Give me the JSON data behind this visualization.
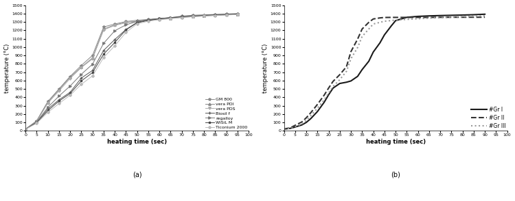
{
  "chart_a": {
    "xlabel": "heating time (sec)",
    "ylabel": "temperature (°C)",
    "xlim": [
      0,
      100
    ],
    "ylim": [
      0,
      1500
    ],
    "xticks": [
      0,
      5,
      10,
      15,
      20,
      25,
      30,
      35,
      40,
      45,
      50,
      55,
      60,
      65,
      70,
      75,
      80,
      85,
      90,
      95,
      100
    ],
    "yticks": [
      0,
      100,
      200,
      300,
      400,
      500,
      600,
      700,
      800,
      900,
      1000,
      1100,
      1200,
      1300,
      1400,
      1500
    ],
    "label": "(a)",
    "series": [
      {
        "name": "GM 800",
        "color": "#888888",
        "linestyle": "-",
        "marker": "*",
        "markersize": 3,
        "x": [
          0,
          5,
          10,
          15,
          20,
          25,
          30,
          35,
          40,
          45,
          50,
          55,
          60,
          65,
          70,
          75,
          80,
          85,
          90,
          95
        ],
        "y": [
          20,
          120,
          350,
          500,
          650,
          780,
          900,
          1240,
          1275,
          1305,
          1320,
          1330,
          1340,
          1350,
          1370,
          1380,
          1385,
          1390,
          1395,
          1400
        ]
      },
      {
        "name": "vera PDI",
        "color": "#888888",
        "linestyle": "-",
        "marker": "^",
        "markersize": 2.5,
        "x": [
          0,
          5,
          10,
          15,
          20,
          25,
          30,
          35,
          40,
          45,
          50,
          55,
          60,
          65,
          70,
          75,
          80,
          85,
          90,
          95
        ],
        "y": [
          20,
          115,
          340,
          490,
          640,
          760,
          870,
          1215,
          1265,
          1295,
          1308,
          1322,
          1333,
          1343,
          1358,
          1368,
          1376,
          1382,
          1388,
          1393
        ]
      },
      {
        "name": "vera PDS",
        "color": "#aaaaaa",
        "linestyle": "-",
        "marker": "v",
        "markersize": 2.5,
        "x": [
          0,
          5,
          10,
          15,
          20,
          25,
          30,
          35,
          40,
          45,
          50,
          55,
          60,
          65,
          70,
          75,
          80,
          85,
          90,
          95
        ],
        "y": [
          20,
          110,
          330,
          475,
          625,
          755,
          858,
          1205,
          1258,
          1290,
          1303,
          1317,
          1327,
          1338,
          1353,
          1363,
          1370,
          1377,
          1384,
          1390
        ]
      },
      {
        "name": "Biosil f",
        "color": "#555555",
        "linestyle": "-",
        "marker": "+",
        "markersize": 3.5,
        "x": [
          0,
          5,
          10,
          15,
          20,
          25,
          30,
          35,
          40,
          45,
          50,
          55,
          60,
          65,
          70,
          75,
          80,
          85,
          90,
          95
        ],
        "y": [
          20,
          100,
          260,
          370,
          460,
          630,
          720,
          960,
          1090,
          1210,
          1295,
          1325,
          1340,
          1352,
          1362,
          1372,
          1379,
          1386,
          1391,
          1396
        ]
      },
      {
        "name": "regalloy",
        "color": "#777777",
        "linestyle": "-",
        "marker": ">",
        "markersize": 2.5,
        "x": [
          0,
          5,
          10,
          15,
          20,
          25,
          30,
          35,
          40,
          45,
          50,
          55,
          60,
          65,
          70,
          75,
          80,
          85,
          90,
          95
        ],
        "y": [
          20,
          105,
          280,
          415,
          535,
          675,
          795,
          1045,
          1195,
          1265,
          1306,
          1327,
          1338,
          1348,
          1360,
          1370,
          1377,
          1383,
          1388,
          1393
        ]
      },
      {
        "name": "WiSiL M",
        "color": "#444444",
        "linestyle": "-",
        "marker": "s",
        "markersize": 2,
        "x": [
          0,
          5,
          10,
          15,
          20,
          25,
          30,
          35,
          40,
          45,
          50,
          55,
          60,
          65,
          70,
          75,
          80,
          85,
          90,
          95
        ],
        "y": [
          20,
          95,
          240,
          355,
          445,
          595,
          695,
          915,
          1055,
          1205,
          1290,
          1317,
          1337,
          1350,
          1358,
          1368,
          1375,
          1381,
          1386,
          1391
        ]
      },
      {
        "name": "Ticonium 2000",
        "color": "#bbbbbb",
        "linestyle": "-",
        "marker": "D",
        "markersize": 2,
        "x": [
          0,
          5,
          10,
          15,
          20,
          25,
          30,
          35,
          40,
          45,
          50,
          55,
          60,
          65,
          70,
          75,
          80,
          85,
          90,
          95
        ],
        "y": [
          20,
          90,
          220,
          325,
          425,
          555,
          655,
          875,
          1015,
          1175,
          1278,
          1308,
          1328,
          1342,
          1353,
          1363,
          1371,
          1378,
          1383,
          1388
        ]
      }
    ]
  },
  "chart_b": {
    "xlabel": "heating time (sec)",
    "ylabel": "temperature (°C)",
    "xlim": [
      0,
      100
    ],
    "ylim": [
      0,
      1500
    ],
    "xticks": [
      0,
      5,
      10,
      15,
      20,
      25,
      30,
      35,
      40,
      45,
      50,
      55,
      60,
      65,
      70,
      75,
      80,
      85,
      90,
      95,
      100
    ],
    "yticks": [
      0,
      100,
      200,
      300,
      400,
      500,
      600,
      700,
      800,
      900,
      1000,
      1100,
      1200,
      1300,
      1400,
      1500
    ],
    "label": "(b)",
    "series": [
      {
        "name": "#Gr I",
        "color": "#1a1a1a",
        "linestyle": "-",
        "linewidth": 1.5,
        "x": [
          0,
          3,
          5,
          8,
          10,
          12,
          15,
          18,
          20,
          22,
          25,
          28,
          30,
          33,
          35,
          38,
          40,
          43,
          45,
          48,
          50,
          55,
          60,
          65,
          70,
          75,
          80,
          85,
          90
        ],
        "y": [
          20,
          30,
          45,
          70,
          100,
          145,
          230,
          340,
          430,
          510,
          565,
          580,
          595,
          650,
          730,
          830,
          940,
          1050,
          1145,
          1250,
          1315,
          1355,
          1366,
          1372,
          1376,
          1379,
          1382,
          1386,
          1392
        ]
      },
      {
        "name": "#Gr II",
        "color": "#333333",
        "linestyle": "--",
        "linewidth": 1.5,
        "x": [
          0,
          3,
          5,
          8,
          10,
          12,
          15,
          18,
          20,
          22,
          25,
          28,
          30,
          33,
          35,
          38,
          40,
          43,
          45,
          48,
          50,
          55,
          60,
          65,
          70,
          75,
          80,
          85,
          90
        ],
        "y": [
          20,
          38,
          65,
          105,
          155,
          215,
          315,
          425,
          510,
          590,
          670,
          765,
          945,
          1095,
          1215,
          1295,
          1335,
          1348,
          1353,
          1354,
          1354,
          1354,
          1354,
          1354,
          1355,
          1356,
          1356,
          1356,
          1356
        ]
      },
      {
        "name": "#Gr III",
        "color": "#999999",
        "linestyle": ":",
        "linewidth": 1.5,
        "x": [
          0,
          3,
          5,
          8,
          10,
          12,
          15,
          18,
          20,
          22,
          25,
          28,
          30,
          33,
          35,
          38,
          40,
          43,
          45,
          48,
          50,
          55,
          60,
          65,
          70,
          75,
          80,
          85,
          90
        ],
        "y": [
          20,
          32,
          50,
          80,
          125,
          180,
          270,
          370,
          450,
          530,
          610,
          710,
          860,
          995,
          1125,
          1215,
          1275,
          1295,
          1308,
          1316,
          1322,
          1330,
          1338,
          1345,
          1352,
          1357,
          1362,
          1367,
          1372
        ]
      }
    ]
  }
}
